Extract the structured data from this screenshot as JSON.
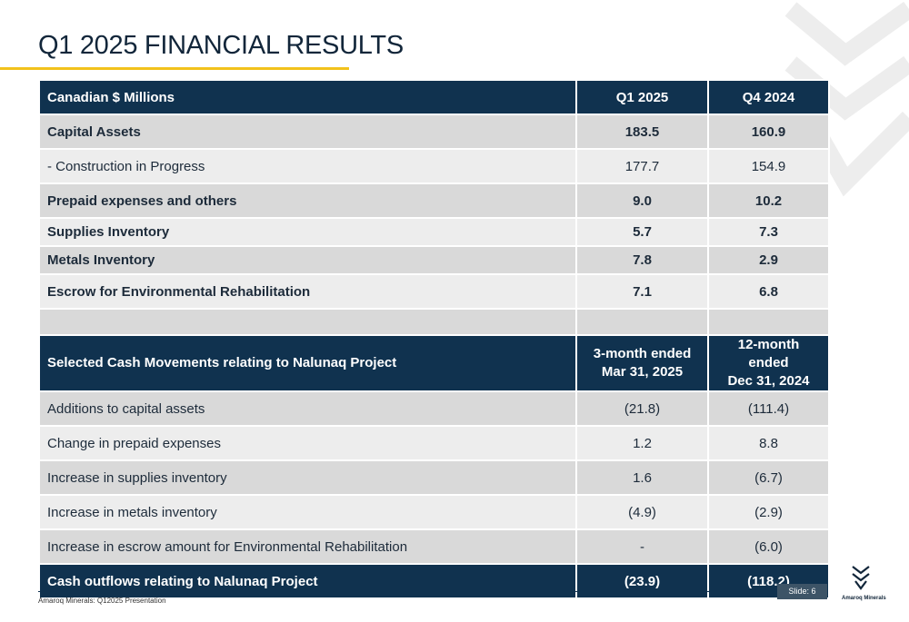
{
  "title": "Q1 2025 FINANCIAL RESULTS",
  "colors": {
    "navy": "#10324f",
    "accent": "#f2c21b",
    "row_dark": "#d9d9d9",
    "row_light": "#ededed"
  },
  "table1": {
    "header": [
      "Canadian $ Millions",
      "Q1 2025",
      "Q4 2024"
    ],
    "rows": [
      [
        "Capital Assets",
        "183.5",
        "160.9"
      ],
      [
        "-  Construction in Progress",
        "177.7",
        "154.9"
      ],
      [
        "Prepaid expenses and others",
        "9.0",
        "10.2"
      ],
      [
        "Supplies Inventory",
        "5.7",
        "7.3"
      ],
      [
        "Metals Inventory",
        "7.8",
        "2.9"
      ],
      [
        "Escrow for Environmental Rehabilitation",
        "7.1",
        "6.8"
      ]
    ]
  },
  "table2": {
    "header": [
      "Selected Cash Movements relating to Nalunaq Project",
      "3-month ended",
      "Mar 31, 2025",
      "12-month ended",
      "Dec 31, 2024"
    ],
    "rows": [
      [
        "Additions to capital assets",
        "(21.8)",
        "(111.4)"
      ],
      [
        "Change in prepaid expenses",
        "1.2",
        "8.8"
      ],
      [
        "Increase in supplies inventory",
        "1.6",
        "(6.7)"
      ],
      [
        "Increase in metals inventory",
        "(4.9)",
        "(2.9)"
      ],
      [
        "Increase in escrow amount for Environmental Rehabilitation",
        "-",
        "(6.0)"
      ]
    ],
    "total": [
      "Cash outflows relating to Nalunaq Project",
      "(23.9)",
      "(118.2)"
    ]
  },
  "footer": {
    "text": "Amaroq Minerals: Q12025 Presentation",
    "slide": "Slide: 6",
    "logo_text": "Amaroq Minerals",
    "icons": [
      "fox-watermark-icon",
      "fox-logo-icon"
    ]
  }
}
